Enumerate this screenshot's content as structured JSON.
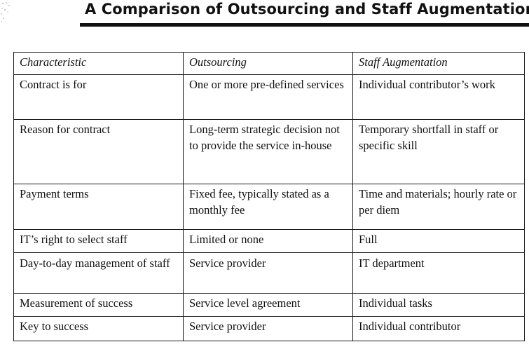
{
  "title": "A Comparison of Outsourcing and Staff Augmentation",
  "table": {
    "headers": [
      "Characteristic",
      "Outsourcing",
      "Staff Augmentation"
    ],
    "rows": [
      [
        "Contract is for",
        "One or more pre-defined services",
        "Individual contributor’s work"
      ],
      [
        "Reason for contract",
        "Long-term strategic decision not to provide the service in-house",
        "Temporary shortfall in staff or specific skill"
      ],
      [
        "Payment terms",
        "Fixed fee, typically stated as a monthly fee",
        "Time and materials; hourly rate or per diem"
      ],
      [
        "IT’s right to select staff",
        "Limited or none",
        "Full"
      ],
      [
        "Day-to-day management of staff",
        "Service provider",
        "IT department"
      ],
      [
        "Measurement of success",
        "Service level agreement",
        "Individual tasks"
      ],
      [
        "Key to success",
        "Service provider",
        "Individual contributor"
      ]
    ]
  }
}
